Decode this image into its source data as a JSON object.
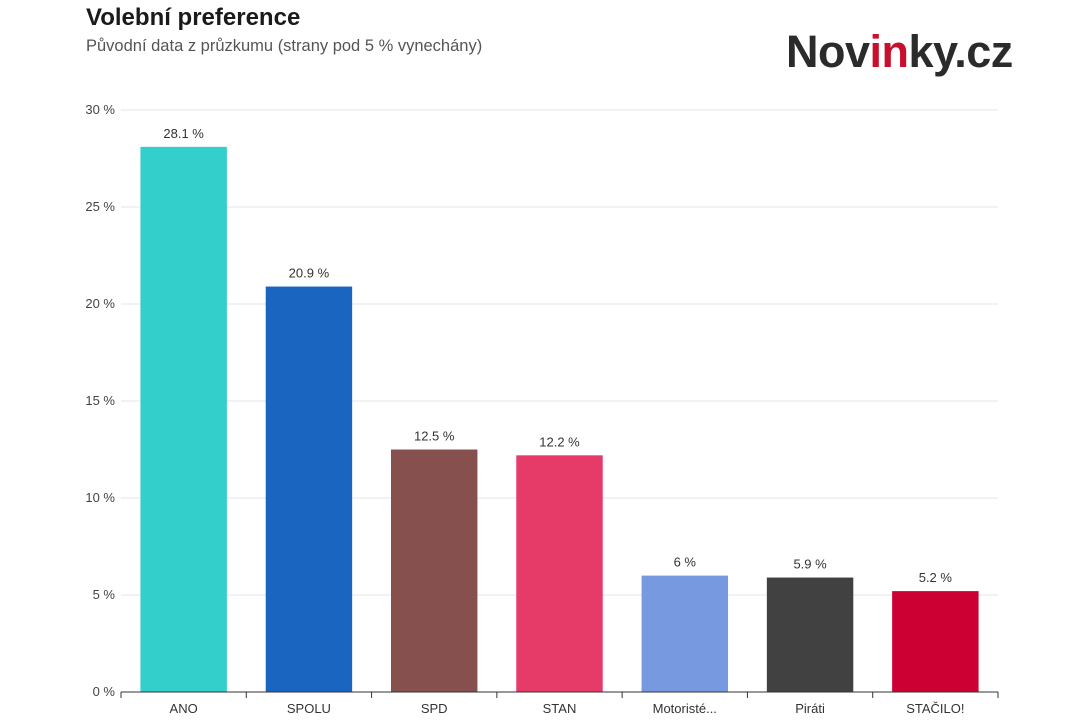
{
  "header": {
    "title": "Volební preference",
    "subtitle": "Původní data z průzkumu (strany pod 5 % vynechány)"
  },
  "logo": {
    "part1": "Nov",
    "part2": "in",
    "part3": "ky.cz"
  },
  "chart_data": {
    "type": "bar",
    "categories": [
      "ANO",
      "SPOLU",
      "SPD",
      "STAN",
      "Motoristé...",
      "Piráti",
      "STAČILO!"
    ],
    "values": [
      28.1,
      20.9,
      12.5,
      12.2,
      6,
      5.9,
      5.2
    ],
    "data_labels": [
      "28.1 %",
      "20.9 %",
      "12.5 %",
      "12.2 %",
      "6 %",
      "5.9 %",
      "5.2 %"
    ],
    "colors": [
      "#33cfcb",
      "#1a65c0",
      "#85504e",
      "#e63a68",
      "#7799df",
      "#414141",
      "#cc0033"
    ],
    "yticks": [
      0,
      5,
      10,
      15,
      20,
      25,
      30
    ],
    "ytick_labels": [
      "0 %",
      "5 %",
      "10 %",
      "15 %",
      "20 %",
      "25 %",
      "30 %"
    ],
    "ylim": [
      0,
      30
    ],
    "grid": true,
    "legend": "none"
  }
}
